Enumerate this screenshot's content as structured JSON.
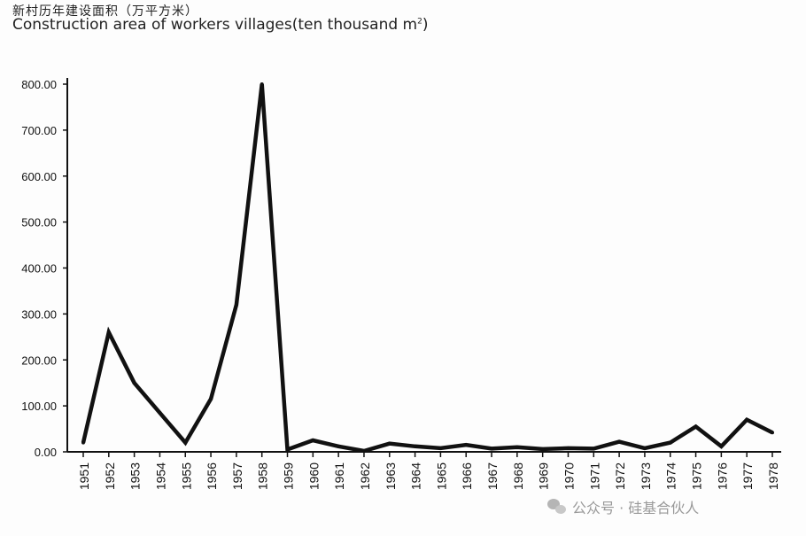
{
  "header": {
    "title_zh": "新村历年建设面积（万平方米）",
    "title_en": "Construction area of workers villages(ten thousand m",
    "title_en_sup": "2",
    "title_en_close": ")"
  },
  "watermark": {
    "icon": "wechat-icon",
    "text": "公众号 · 硅基合伙人",
    "color": "#999999"
  },
  "colors": {
    "line": "#111111",
    "axis": "#111111",
    "background": "#fdfdfd"
  },
  "chart_data": {
    "type": "line",
    "title": "Construction area of workers villages(ten thousand m2)",
    "xlabel": "",
    "ylabel": "",
    "ylim": [
      0,
      800
    ],
    "yticks": [
      0,
      100,
      200,
      300,
      400,
      500,
      600,
      700,
      800
    ],
    "ytick_labels": [
      "0.00",
      "100.00",
      "200.00",
      "300.00",
      "400.00",
      "500.00",
      "600.00",
      "700.00",
      "800.00"
    ],
    "grid": false,
    "categories": [
      "1951",
      "1952",
      "1953",
      "1954",
      "1955",
      "1956",
      "1957",
      "1958",
      "1959",
      "1960",
      "1961",
      "1962",
      "1963",
      "1964",
      "1965",
      "1966",
      "1967",
      "1968",
      "1969",
      "1970",
      "1971",
      "1972",
      "1973",
      "1974",
      "1975",
      "1976",
      "1977",
      "1978"
    ],
    "series": [
      {
        "values": [
          20,
          260,
          150,
          85,
          20,
          115,
          320,
          800,
          5,
          25,
          12,
          2,
          18,
          12,
          8,
          15,
          7,
          10,
          6,
          8,
          7,
          22,
          8,
          20,
          55,
          12,
          70,
          42
        ]
      }
    ]
  }
}
